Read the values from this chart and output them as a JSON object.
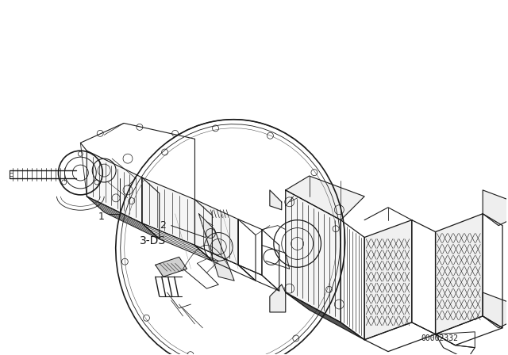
{
  "background_color": "#ffffff",
  "line_color": "#1a1a1a",
  "label_1": "1",
  "label_2": "2",
  "label_3": "3-DS",
  "part_number": "00002332",
  "fig_width": 6.4,
  "fig_height": 4.48,
  "dpi": 100
}
